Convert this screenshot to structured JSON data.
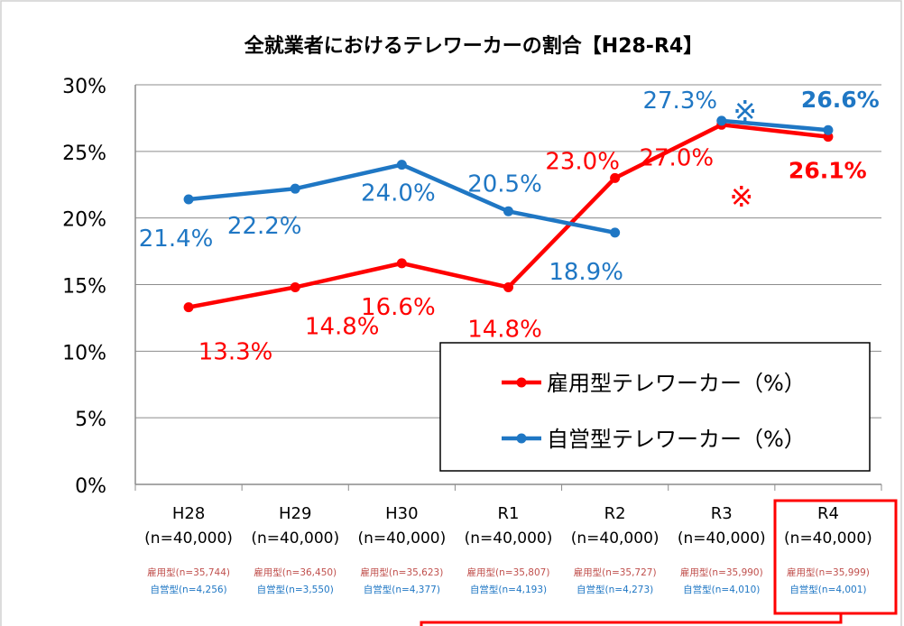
{
  "chart_data": {
    "type": "line",
    "title": "全就業者におけるテレワーカーの割合【H28-R4】",
    "categories": [
      "H28",
      "H29",
      "H30",
      "R1",
      "R2",
      "R3",
      "R4"
    ],
    "sample_sizes": [
      "(n=40,000)",
      "(n=40,000)",
      "(n=40,000)",
      "(n=40,000)",
      "(n=40,000)",
      "(n=40,000)",
      "(n=40,000)"
    ],
    "subgroup_counts": {
      "employed": [
        "雇用型(n=35,744)",
        "雇用型(n=36,450)",
        "雇用型(n=35,623)",
        "雇用型(n=35,807)",
        "雇用型(n=35,727)",
        "雇用型(n=35,990)",
        "雇用型(n=35,999)"
      ],
      "self_employed": [
        "自営型(n=4,256)",
        "自営型(n=3,550)",
        "自営型(n=4,377)",
        "自営型(n=4,193)",
        "自営型(n=4,273)",
        "自営型(n=4,010)",
        "自営型(n=4,001)"
      ]
    },
    "ylim": [
      0,
      30
    ],
    "yticks": [
      0,
      5,
      10,
      15,
      20,
      25,
      30
    ],
    "ytick_labels": [
      "0%",
      "5%",
      "10%",
      "15%",
      "20%",
      "25%",
      "30%"
    ],
    "grid": true,
    "legend_position": "bottom-right",
    "series": [
      {
        "name": "雇用型テレワーカー（%）",
        "color": "#ff0000",
        "segments": [
          [
            0,
            1,
            2,
            3,
            4,
            5,
            6
          ]
        ],
        "values": [
          13.3,
          14.8,
          16.6,
          14.8,
          23.0,
          27.0,
          26.1
        ],
        "labels": [
          "13.3%",
          "14.8%",
          "16.6%",
          "14.8%",
          "23.0%",
          "27.0%",
          "26.1%"
        ]
      },
      {
        "name": "自営型テレワーカー（%）",
        "color": "#1f77c4",
        "segments": [
          [
            0,
            1,
            2,
            3,
            4
          ],
          [
            5,
            6
          ]
        ],
        "values": [
          21.4,
          22.2,
          24.0,
          20.5,
          18.9,
          27.3,
          26.6
        ],
        "labels": [
          "21.4%",
          "22.2%",
          "24.0%",
          "20.5%",
          "18.9%",
          "27.3%",
          "26.6%"
        ]
      }
    ],
    "annotations": [
      "※",
      "※"
    ],
    "highlighted_category": "R4"
  }
}
